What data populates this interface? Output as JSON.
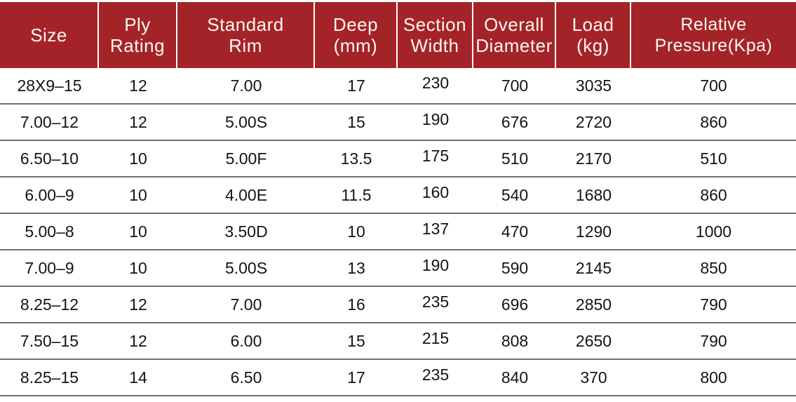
{
  "table": {
    "headers": [
      {
        "line1": "Size",
        "line2": ""
      },
      {
        "line1": "Ply",
        "line2": "Rating"
      },
      {
        "line1": "Standard",
        "line2": "Rim"
      },
      {
        "line1": "Deep",
        "line2": "(mm)"
      },
      {
        "line1": "Section",
        "line2": "Width"
      },
      {
        "line1": "Overall",
        "line2": "Diameter"
      },
      {
        "line1": "Load",
        "line2": "(kg)"
      },
      {
        "line1": "Relative",
        "line2": "Pressure(Kpa)"
      }
    ],
    "rows": [
      [
        "28X9–15",
        "12",
        "7.00",
        "17",
        "230",
        "700",
        "3035",
        "700"
      ],
      [
        "7.00–12",
        "12",
        "5.00S",
        "15",
        "190",
        "676",
        "2720",
        "860"
      ],
      [
        "6.50–10",
        "10",
        "5.00F",
        "13.5",
        "175",
        "510",
        "2170",
        "510"
      ],
      [
        "6.00–9",
        "10",
        "4.00E",
        "11.5",
        "160",
        "540",
        "1680",
        "860"
      ],
      [
        "5.00–8",
        "10",
        "3.50D",
        "10",
        "137",
        "470",
        "1290",
        "1000"
      ],
      [
        "7.00–9",
        "10",
        "5.00S",
        "13",
        "190",
        "590",
        "2145",
        "850"
      ],
      [
        "8.25–12",
        "12",
        "7.00",
        "16",
        "235",
        "696",
        "2850",
        "790"
      ],
      [
        "7.50–15",
        "12",
        "6.00",
        "15",
        "215",
        "808",
        "2650",
        "790"
      ],
      [
        "8.25–15",
        "14",
        "6.50",
        "17",
        "235",
        "840",
        "370",
        "800"
      ]
    ],
    "colors": {
      "header_bg": "#A42329",
      "header_text": "#FBF8F1",
      "row_divider": "#6F6F6F",
      "body_text": "#141414",
      "background": "#FFFFFF"
    }
  }
}
